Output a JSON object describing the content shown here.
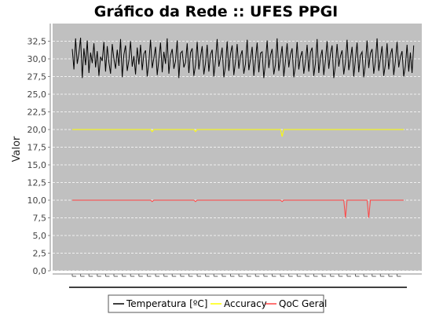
{
  "chart_data": {
    "type": "line",
    "title": "Gráfico da Rede :: UFES PPGI",
    "xlabel": "",
    "ylabel": "Valor",
    "ylim": [
      0,
      35
    ],
    "yticks": [
      "0,0",
      "2,5",
      "5,0",
      "7,5",
      "10,0",
      "12,5",
      "15,0",
      "17,5",
      "20,0",
      "22,5",
      "25,0",
      "27,5",
      "30,0",
      "32,5"
    ],
    "x_tick_labels_visible": false,
    "grid": true,
    "legend_position": "bottom",
    "background_color": "#c0c0c0",
    "gridline_color": "#ffffff",
    "x_count": 200,
    "series": [
      {
        "name": "Temperatura [ºC]",
        "color": "#000000",
        "values": [
          31.4,
          28.5,
          32.9,
          29.3,
          30.8,
          33.0,
          27.3,
          31.5,
          29.1,
          32.6,
          28.0,
          30.9,
          29.4,
          32.2,
          28.8,
          31.1,
          27.6,
          30.3,
          29.7,
          32.4,
          28.2,
          31.8,
          29.5,
          27.9,
          32.1,
          30.0,
          28.6,
          31.3,
          29.0,
          32.8,
          27.4,
          30.6,
          31.9,
          28.3,
          29.8,
          32.5,
          28.9,
          30.4,
          27.8,
          31.6,
          29.2,
          32.0,
          28.4,
          30.7,
          31.2,
          27.5,
          29.6,
          32.7,
          28.7,
          30.1,
          31.7,
          27.7,
          29.9,
          32.3,
          28.1,
          31.0,
          29.3,
          32.9,
          27.9,
          30.5,
          31.4,
          28.6,
          29.7,
          32.6,
          27.3,
          30.8,
          31.1,
          28.8,
          29.5,
          32.2,
          28.0,
          30.9,
          31.5,
          27.6,
          29.1,
          32.4,
          28.5,
          30.3,
          31.8,
          27.8,
          29.4,
          32.0,
          28.2,
          30.6,
          31.3,
          27.5,
          29.8,
          32.8,
          28.9,
          30.2,
          31.6,
          27.4,
          29.0,
          32.5,
          28.3,
          30.7,
          31.9,
          27.7,
          29.6,
          32.1,
          28.6,
          30.4,
          31.2,
          27.9,
          29.3,
          32.7,
          28.4,
          30.0,
          31.7,
          27.6,
          29.9,
          32.3,
          28.1,
          30.8,
          31.0,
          27.3,
          29.5,
          32.6,
          28.7,
          30.5,
          31.4,
          27.8,
          29.2,
          32.9,
          28.3,
          30.1,
          31.8,
          27.5,
          29.7,
          32.2,
          28.8,
          30.6,
          31.5,
          27.4,
          29.0,
          32.4,
          28.5,
          30.3,
          31.1,
          27.9,
          29.6,
          32.0,
          28.2,
          30.9,
          31.6,
          27.6,
          29.4,
          32.8,
          28.0,
          30.2,
          31.3,
          27.7,
          29.8,
          32.5,
          28.6,
          30.7,
          31.9,
          27.3,
          29.1,
          32.1,
          28.9,
          30.4,
          31.2,
          27.8,
          29.5,
          32.7,
          28.4,
          30.0,
          31.7,
          27.5,
          29.9,
          32.3,
          28.1,
          30.5,
          31.0,
          27.4,
          29.3,
          32.6,
          28.7,
          30.8,
          31.4,
          27.9,
          29.6,
          32.9,
          28.3,
          30.1,
          31.8,
          27.6,
          29.2,
          32.2,
          28.5,
          30.6,
          31.5,
          27.7,
          29.7,
          32.4,
          28.8,
          30.3,
          31.1,
          27.5,
          29.0,
          32.0,
          28.2,
          30.9,
          28.0,
          31.9
        ]
      },
      {
        "name": "Accuracy",
        "color": "#ffff00",
        "baseline": 20.0,
        "values": [],
        "dips": [
          [
            48,
            19.7
          ],
          [
            74,
            19.7
          ],
          [
            126,
            19.0
          ]
        ]
      },
      {
        "name": "QoC Geral",
        "color": "#ff4444",
        "baseline": 10.0,
        "values": [],
        "dips": [
          [
            48,
            9.8
          ],
          [
            74,
            9.8
          ],
          [
            126,
            9.8
          ],
          [
            164,
            7.5
          ],
          [
            178,
            7.5
          ]
        ]
      }
    ]
  }
}
